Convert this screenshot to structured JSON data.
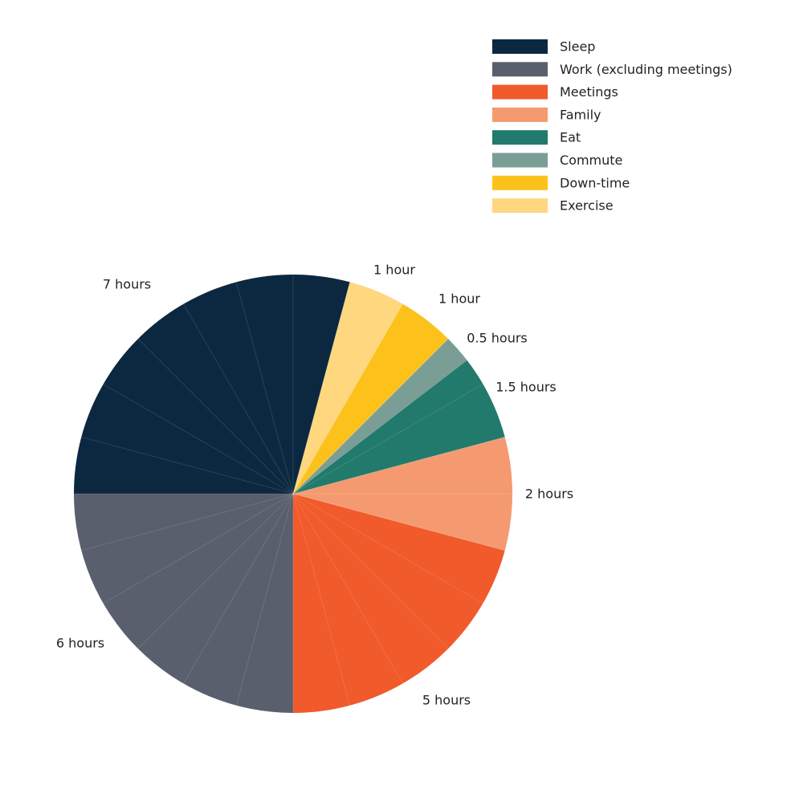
{
  "chart_data": {
    "type": "pie",
    "categories": [
      "Sleep",
      "Work (excluding meetings)",
      "Meetings",
      "Family",
      "Eat",
      "Commute",
      "Down-time",
      "Exercise"
    ],
    "values": [
      7,
      6,
      5,
      2,
      1.5,
      0.5,
      1,
      1
    ],
    "value_labels": [
      "7 hours",
      "6 hours",
      "5 hours",
      "2 hours",
      "1.5 hours",
      "0.5 hours",
      "1 hour",
      "1 hour"
    ],
    "colors": [
      "#0b2840",
      "#5a5f6e",
      "#f15a2b",
      "#f59a70",
      "#217a6b",
      "#7a9e96",
      "#fcc21b",
      "#fed77e"
    ],
    "legend": "top-right"
  }
}
